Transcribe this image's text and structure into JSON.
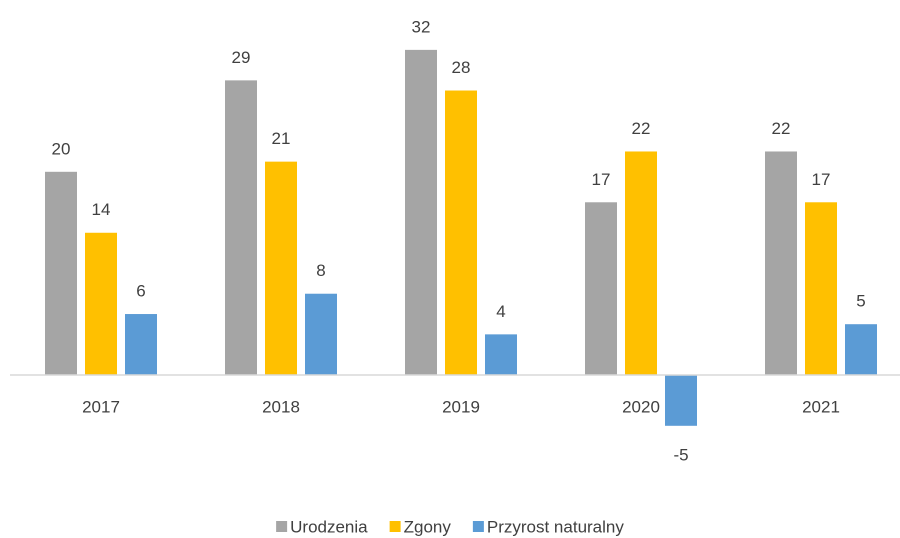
{
  "chart_data": {
    "type": "bar",
    "categories": [
      "2017",
      "2018",
      "2019",
      "2020",
      "2021"
    ],
    "series": [
      {
        "name": "Urodzenia",
        "color": "#a5a5a5",
        "values": [
          20,
          29,
          32,
          17,
          22
        ]
      },
      {
        "name": "Zgony",
        "color": "#ffc000",
        "values": [
          14,
          21,
          28,
          22,
          17
        ]
      },
      {
        "name": "Przyrost naturalny",
        "color": "#5b9bd5",
        "values": [
          6,
          8,
          4,
          -5,
          5
        ]
      }
    ],
    "ylim": [
      -10,
      35
    ],
    "legend": "bottom"
  }
}
